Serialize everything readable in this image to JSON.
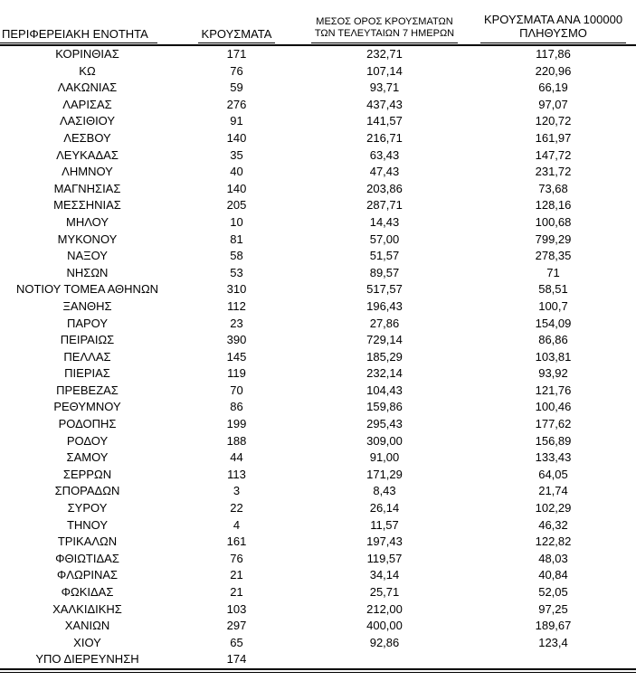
{
  "colors": {
    "text": "#000000",
    "rule": "#000000",
    "background": "#ffffff"
  },
  "table": {
    "headers": {
      "col1": "ΠΕΡΙΦΕΡΕΙΑΚΗ ΕΝΟΤΗΤΑ",
      "col2": "ΚΡΟΥΣΜΑΤΑ",
      "col3_line1": "ΜΕΣΟΣ ΟΡΟΣ ΚΡΟΥΣΜΑΤΩΝ",
      "col3_line2": "ΤΩΝ ΤΕΛΕΥΤΑΙΩΝ 7 ΗΜΕΡΩΝ",
      "col4_line1": "ΚΡΟΥΣΜΑΤΑ ΑΝΑ 100000",
      "col4_line2": "ΠΛΗΘΥΣΜΟ"
    },
    "rows": [
      {
        "region": "ΚΟΡΙΝΘΙΑΣ",
        "cases": "171",
        "avg7": "232,71",
        "per100k": "117,86"
      },
      {
        "region": "ΚΩ",
        "cases": "76",
        "avg7": "107,14",
        "per100k": "220,96"
      },
      {
        "region": "ΛΑΚΩΝΙΑΣ",
        "cases": "59",
        "avg7": "93,71",
        "per100k": "66,19"
      },
      {
        "region": "ΛΑΡΙΣΑΣ",
        "cases": "276",
        "avg7": "437,43",
        "per100k": "97,07"
      },
      {
        "region": "ΛΑΣΙΘΙΟΥ",
        "cases": "91",
        "avg7": "141,57",
        "per100k": "120,72"
      },
      {
        "region": "ΛΕΣΒΟΥ",
        "cases": "140",
        "avg7": "216,71",
        "per100k": "161,97"
      },
      {
        "region": "ΛΕΥΚΑΔΑΣ",
        "cases": "35",
        "avg7": "63,43",
        "per100k": "147,72"
      },
      {
        "region": "ΛΗΜΝΟΥ",
        "cases": "40",
        "avg7": "47,43",
        "per100k": "231,72"
      },
      {
        "region": "ΜΑΓΝΗΣΙΑΣ",
        "cases": "140",
        "avg7": "203,86",
        "per100k": "73,68"
      },
      {
        "region": "ΜΕΣΣΗΝΙΑΣ",
        "cases": "205",
        "avg7": "287,71",
        "per100k": "128,16"
      },
      {
        "region": "ΜΗΛΟΥ",
        "cases": "10",
        "avg7": "14,43",
        "per100k": "100,68"
      },
      {
        "region": "ΜΥΚΟΝΟΥ",
        "cases": "81",
        "avg7": "57,00",
        "per100k": "799,29"
      },
      {
        "region": "ΝΑΞΟΥ",
        "cases": "58",
        "avg7": "51,57",
        "per100k": "278,35"
      },
      {
        "region": "ΝΗΣΩΝ",
        "cases": "53",
        "avg7": "89,57",
        "per100k": "71"
      },
      {
        "region": "ΝΟΤΙΟΥ ΤΟΜΕΑ ΑΘΗΝΩΝ",
        "cases": "310",
        "avg7": "517,57",
        "per100k": "58,51"
      },
      {
        "region": "ΞΑΝΘΗΣ",
        "cases": "112",
        "avg7": "196,43",
        "per100k": "100,7"
      },
      {
        "region": "ΠΑΡΟΥ",
        "cases": "23",
        "avg7": "27,86",
        "per100k": "154,09"
      },
      {
        "region": "ΠΕΙΡΑΙΩΣ",
        "cases": "390",
        "avg7": "729,14",
        "per100k": "86,86"
      },
      {
        "region": "ΠΕΛΛΑΣ",
        "cases": "145",
        "avg7": "185,29",
        "per100k": "103,81"
      },
      {
        "region": "ΠΙΕΡΙΑΣ",
        "cases": "119",
        "avg7": "232,14",
        "per100k": "93,92"
      },
      {
        "region": "ΠΡΕΒΕΖΑΣ",
        "cases": "70",
        "avg7": "104,43",
        "per100k": "121,76"
      },
      {
        "region": "ΡΕΘΥΜΝΟΥ",
        "cases": "86",
        "avg7": "159,86",
        "per100k": "100,46"
      },
      {
        "region": "ΡΟΔΟΠΗΣ",
        "cases": "199",
        "avg7": "295,43",
        "per100k": "177,62"
      },
      {
        "region": "ΡΟΔΟΥ",
        "cases": "188",
        "avg7": "309,00",
        "per100k": "156,89"
      },
      {
        "region": "ΣΑΜΟΥ",
        "cases": "44",
        "avg7": "91,00",
        "per100k": "133,43"
      },
      {
        "region": "ΣΕΡΡΩΝ",
        "cases": "113",
        "avg7": "171,29",
        "per100k": "64,05"
      },
      {
        "region": "ΣΠΟΡΑΔΩΝ",
        "cases": "3",
        "avg7": "8,43",
        "per100k": "21,74"
      },
      {
        "region": "ΣΥΡΟΥ",
        "cases": "22",
        "avg7": "26,14",
        "per100k": "102,29"
      },
      {
        "region": "ΤΗΝΟΥ",
        "cases": "4",
        "avg7": "11,57",
        "per100k": "46,32"
      },
      {
        "region": "ΤΡΙΚΑΛΩΝ",
        "cases": "161",
        "avg7": "197,43",
        "per100k": "122,82"
      },
      {
        "region": "ΦΘΙΩΤΙΔΑΣ",
        "cases": "76",
        "avg7": "119,57",
        "per100k": "48,03"
      },
      {
        "region": "ΦΛΩΡΙΝΑΣ",
        "cases": "21",
        "avg7": "34,14",
        "per100k": "40,84"
      },
      {
        "region": "ΦΩΚΙΔΑΣ",
        "cases": "21",
        "avg7": "25,71",
        "per100k": "52,05"
      },
      {
        "region": "ΧΑΛΚΙΔΙΚΗΣ",
        "cases": "103",
        "avg7": "212,00",
        "per100k": "97,25"
      },
      {
        "region": "ΧΑΝΙΩΝ",
        "cases": "297",
        "avg7": "400,00",
        "per100k": "189,67"
      },
      {
        "region": "ΧΙΟΥ",
        "cases": "65",
        "avg7": "92,86",
        "per100k": "123,4"
      },
      {
        "region": "ΥΠΟ ΔΙΕΡΕΥΝΗΣΗ",
        "cases": "174",
        "avg7": "",
        "per100k": ""
      }
    ]
  }
}
